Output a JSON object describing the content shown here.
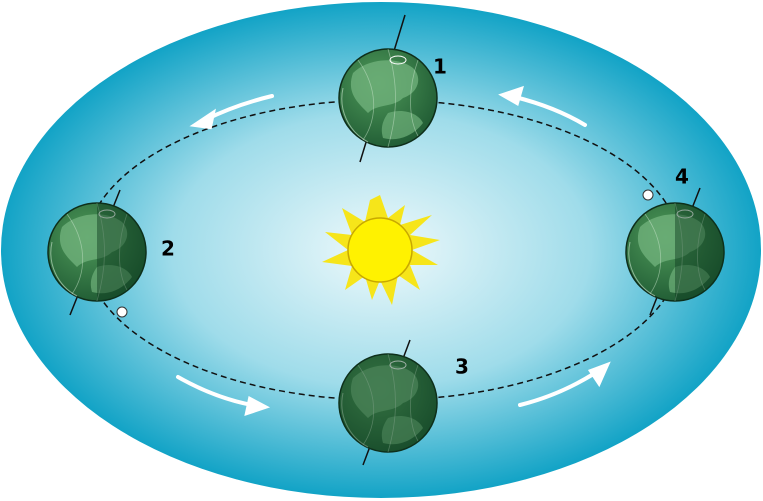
{
  "positions": [
    {
      "label": "1"
    },
    {
      "label": "2"
    },
    {
      "label": "3"
    },
    {
      "label": "4"
    }
  ]
}
